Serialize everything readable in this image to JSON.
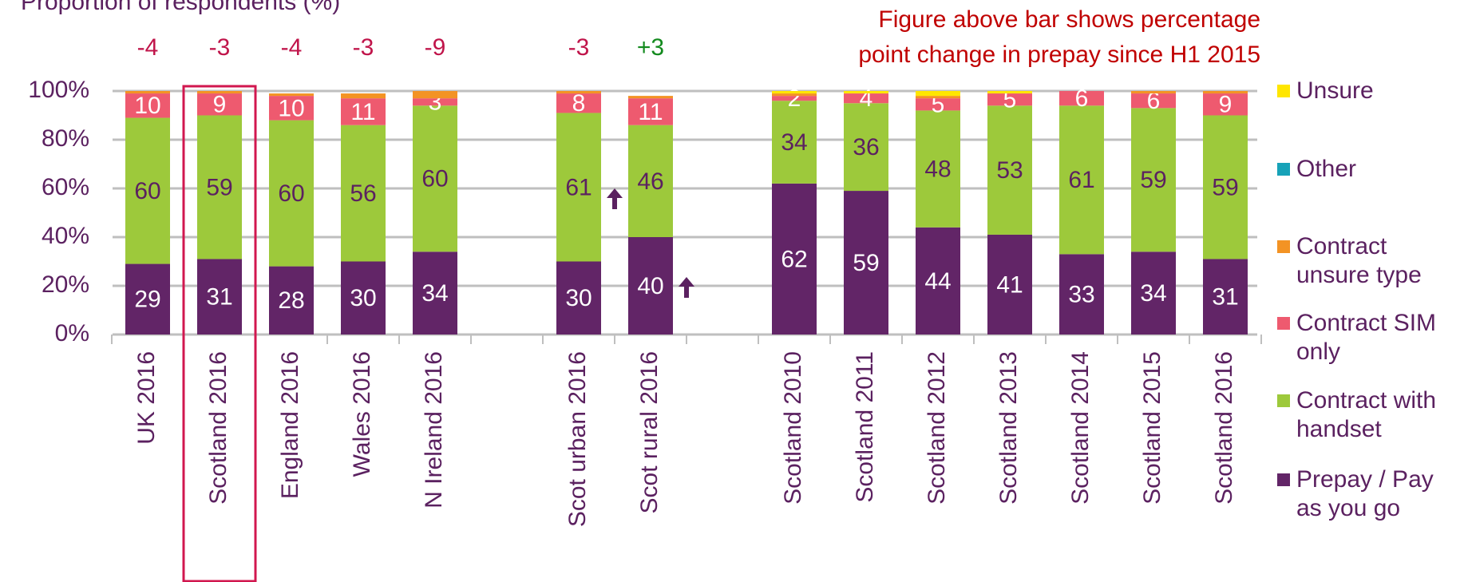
{
  "chart_data": {
    "type": "stacked_bar",
    "title": "Proportion of respondents (%)",
    "note": [
      "Figure above bar shows percentage",
      "point change in prepay since H1 2015"
    ],
    "categories": [
      "UK 2016",
      "Scotland 2016",
      "England 2016",
      "Wales 2016",
      "N Ireland 2016",
      null,
      "Scot urban 2016",
      "Scot rural 2016",
      null,
      "Scotland 2010",
      "Scotland 2011",
      "Scotland 2012",
      "Scotland 2013",
      "Scotland 2014",
      "Scotland 2015",
      "Scotland 2016"
    ],
    "change_labels": [
      "-4",
      "-3",
      "-4",
      "-3",
      "-9",
      null,
      "-3",
      "+3",
      null,
      null,
      null,
      null,
      null,
      null,
      null,
      null
    ],
    "change_colors": [
      "#c0144a",
      "#c0144a",
      "#c0144a",
      "#c0144a",
      "#c0144a",
      null,
      "#c0144a",
      "#138a1e",
      null,
      null,
      null,
      null,
      null,
      null,
      null,
      null
    ],
    "series": [
      {
        "name": "Prepay / Pay as you go",
        "color": "#622567",
        "label_color": "#ffffff",
        "values": [
          29,
          31,
          28,
          30,
          34,
          null,
          30,
          40,
          null,
          62,
          59,
          44,
          41,
          33,
          34,
          31
        ],
        "value_labels": [
          "29",
          "31",
          "28",
          "30",
          "34",
          null,
          "30",
          "40",
          null,
          "62",
          "59",
          "44",
          "41",
          "33",
          "34",
          "31"
        ]
      },
      {
        "name": "Contract with handset",
        "color": "#9dc93b",
        "label_color": "#5b2160",
        "values": [
          60,
          59,
          60,
          56,
          60,
          null,
          61,
          46,
          null,
          34,
          36,
          48,
          53,
          61,
          59,
          59
        ],
        "value_labels": [
          "60",
          "59",
          "60",
          "56",
          "60",
          null,
          "61",
          "46",
          null,
          "34",
          "36",
          "48",
          "53",
          "61",
          "59",
          "59"
        ]
      },
      {
        "name": "Contract SIM only",
        "color": "#ee5a6f",
        "label_color": "#ffffff",
        "values": [
          10,
          9,
          10,
          11,
          3,
          null,
          8,
          11,
          null,
          2,
          4,
          5,
          5,
          6,
          6,
          9
        ],
        "value_labels": [
          "10",
          "9",
          "10",
          "11",
          "3",
          null,
          "8",
          "11",
          null,
          "2",
          "4",
          "5",
          "5",
          "6",
          "6",
          "9"
        ]
      },
      {
        "name": "Contract unsure type",
        "color": "#f39324",
        "label_color": "#ffffff",
        "values": [
          1,
          1,
          1,
          2,
          3,
          null,
          1,
          1,
          null,
          1,
          0,
          1,
          0,
          0,
          1,
          1
        ]
      },
      {
        "name": "Other",
        "color": "#17a2b8",
        "label_color": "#ffffff",
        "values": [
          0,
          0,
          0,
          0,
          0,
          null,
          0,
          0,
          null,
          0,
          0,
          0,
          0,
          0,
          0,
          0
        ]
      },
      {
        "name": "Unsure",
        "color": "#ffe600",
        "label_color": "#ffffff",
        "values": [
          0,
          0,
          0,
          0,
          0,
          null,
          0,
          0,
          null,
          1,
          1,
          2,
          1,
          0,
          0,
          0
        ]
      }
    ],
    "ylim": [
      0,
      100
    ],
    "yticks": [
      {
        "value": 0,
        "label": "0%"
      },
      {
        "value": 20,
        "label": "20%"
      },
      {
        "value": 40,
        "label": "40%"
      },
      {
        "value": 60,
        "label": "60%"
      },
      {
        "value": 80,
        "label": "80%"
      },
      {
        "value": 100,
        "label": "100%"
      }
    ],
    "grid": true
  }
}
